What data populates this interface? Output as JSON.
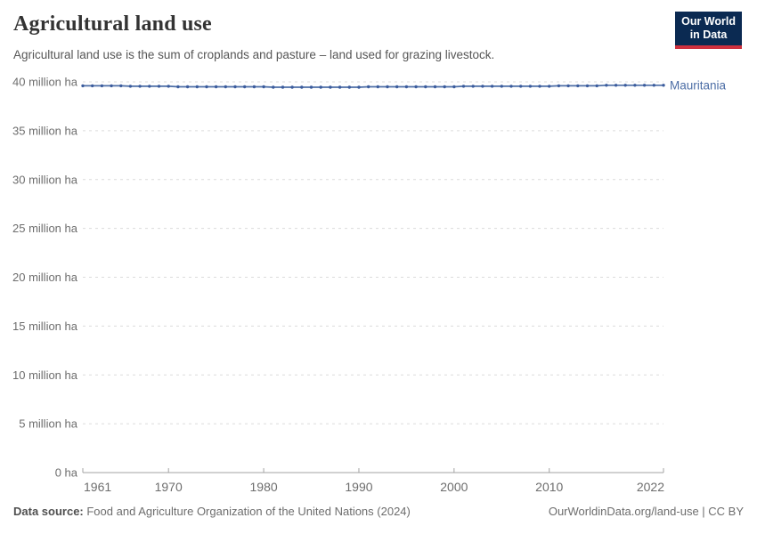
{
  "header": {
    "title": "Agricultural land use",
    "subtitle": "Agricultural land use is the sum of croplands and pasture – land used for grazing livestock.",
    "logo": {
      "line1": "Our World",
      "line2": "in Data"
    }
  },
  "chart_data": {
    "type": "line",
    "title": "Agricultural land use",
    "unit": "million ha",
    "series": [
      {
        "name": "Mauritania",
        "color": "#4d6ea6",
        "marker_color": "#3b5c9d",
        "x": [
          1961,
          1962,
          1963,
          1964,
          1965,
          1966,
          1967,
          1968,
          1969,
          1970,
          1971,
          1972,
          1973,
          1974,
          1975,
          1976,
          1977,
          1978,
          1979,
          1980,
          1981,
          1982,
          1983,
          1984,
          1985,
          1986,
          1987,
          1988,
          1989,
          1990,
          1991,
          1992,
          1993,
          1994,
          1995,
          1996,
          1997,
          1998,
          1999,
          2000,
          2001,
          2002,
          2003,
          2004,
          2005,
          2006,
          2007,
          2008,
          2009,
          2010,
          2011,
          2012,
          2013,
          2014,
          2015,
          2016,
          2017,
          2018,
          2019,
          2020,
          2021,
          2022
        ],
        "values": [
          39.6,
          39.6,
          39.6,
          39.6,
          39.6,
          39.55,
          39.55,
          39.55,
          39.55,
          39.55,
          39.5,
          39.5,
          39.5,
          39.5,
          39.5,
          39.5,
          39.5,
          39.5,
          39.5,
          39.5,
          39.45,
          39.45,
          39.45,
          39.45,
          39.45,
          39.45,
          39.45,
          39.45,
          39.45,
          39.45,
          39.5,
          39.5,
          39.5,
          39.5,
          39.5,
          39.5,
          39.5,
          39.5,
          39.5,
          39.5,
          39.55,
          39.55,
          39.55,
          39.55,
          39.55,
          39.55,
          39.55,
          39.55,
          39.55,
          39.55,
          39.6,
          39.6,
          39.6,
          39.6,
          39.6,
          39.65,
          39.65,
          39.65,
          39.65,
          39.65,
          39.65,
          39.65
        ]
      }
    ],
    "xlim": [
      1961,
      2022
    ],
    "ylim": [
      0,
      40
    ],
    "grid": "dashed-horizontal",
    "legend_position": "right-end-label",
    "yticks": [
      {
        "value": 0,
        "label": "0 ha"
      },
      {
        "value": 5,
        "label": "5 million ha"
      },
      {
        "value": 10,
        "label": "10 million ha"
      },
      {
        "value": 15,
        "label": "15 million ha"
      },
      {
        "value": 20,
        "label": "20 million ha"
      },
      {
        "value": 25,
        "label": "25 million ha"
      },
      {
        "value": 30,
        "label": "30 million ha"
      },
      {
        "value": 35,
        "label": "35 million ha"
      },
      {
        "value": 40,
        "label": "40 million ha"
      }
    ],
    "xticks": [
      1961,
      1970,
      1980,
      1990,
      2000,
      2010,
      2022
    ]
  },
  "footer": {
    "source_label": "Data source:",
    "source_text": " Food and Agriculture Organization of the United Nations (2024)",
    "link_text": "OurWorldinData.org/land-use | CC BY"
  },
  "colors": {
    "accent_blue": "#4d6ea6",
    "logo_bg": "#0b2a52",
    "logo_red": "#cf303e",
    "gridline": "#dcdcdc",
    "axis": "#a3a3a3",
    "tick_label": "#6d6d6d"
  }
}
